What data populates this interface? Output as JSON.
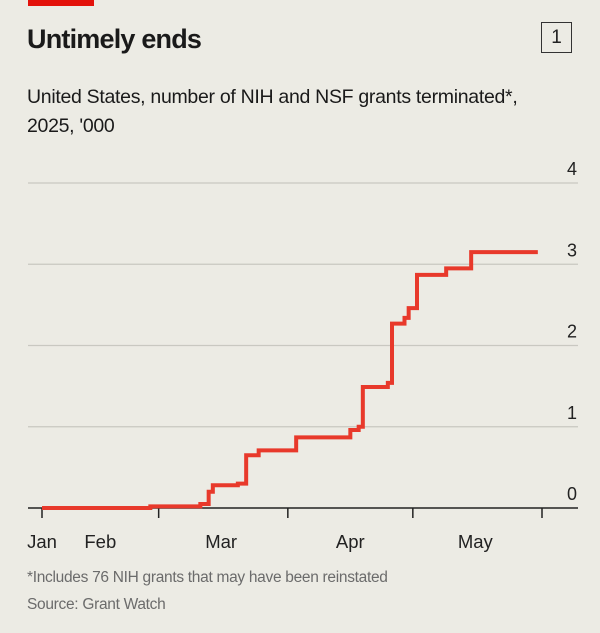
{
  "header": {
    "title": "Untimely ends",
    "chart_number": "1",
    "subtitle": "United States, number of NIH and NSF grants terminated*, 2025, '000"
  },
  "footer": {
    "footnote": "*Includes 76 NIH grants that may have been reinstated",
    "source": "Source: Grant Watch"
  },
  "colors": {
    "line": "#e8392b",
    "brand_bar": "#e3120b",
    "background": "#ecebe4"
  },
  "chart_data": {
    "type": "line",
    "step": true,
    "title": "Untimely ends",
    "subtitle": "United States, number of NIH and NSF grants terminated*, 2025, '000",
    "xlabel": "",
    "ylabel": "",
    "ylim": [
      0,
      4
    ],
    "xlim": [
      "2025-02-01",
      "2025-06-01"
    ],
    "yticks": [
      0,
      1,
      2,
      3,
      4
    ],
    "y_axis_side": "right",
    "grid": true,
    "xticks": [
      "2025-02-01",
      "2025-03-01",
      "2025-04-01",
      "2025-05-01",
      "2025-06-01"
    ],
    "xtick_labels": [
      {
        "label": "Jan",
        "at": "2025-02-01"
      },
      {
        "label": "Feb",
        "at": "2025-02-15"
      },
      {
        "label": "Mar",
        "at": "2025-03-16"
      },
      {
        "label": "Apr",
        "at": "2025-04-16"
      },
      {
        "label": "May",
        "at": "2025-05-16"
      }
    ],
    "series": [
      {
        "x": [
          "2025-02-01",
          "2025-02-27",
          "2025-03-11",
          "2025-03-13",
          "2025-03-14",
          "2025-03-20",
          "2025-03-22",
          "2025-03-25",
          "2025-04-03",
          "2025-04-16",
          "2025-04-18",
          "2025-04-19",
          "2025-04-25",
          "2025-04-26",
          "2025-04-29",
          "2025-04-30",
          "2025-05-02",
          "2025-05-09",
          "2025-05-15",
          "2025-05-31"
        ],
        "y": [
          0,
          0.02,
          0.05,
          0.2,
          0.28,
          0.3,
          0.65,
          0.71,
          0.87,
          0.96,
          1.0,
          1.49,
          1.54,
          2.27,
          2.34,
          2.46,
          2.87,
          2.95,
          3.15,
          3.15
        ]
      }
    ]
  }
}
